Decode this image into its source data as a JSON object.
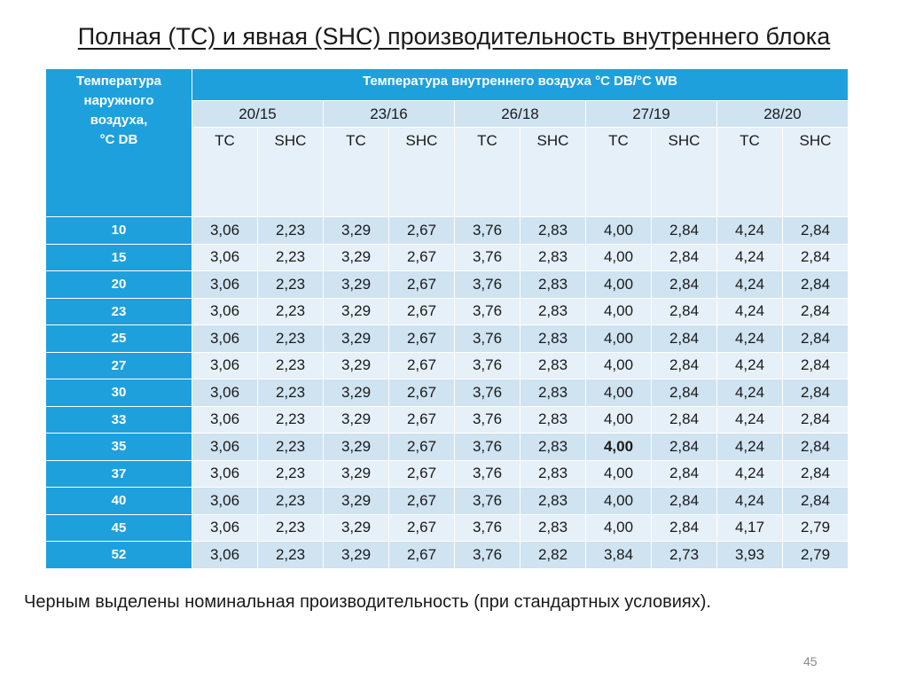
{
  "title": "Полная (TC) и явная (SHC) производительность внутреннего блока",
  "table": {
    "corner_header": [
      "Температура",
      "наружного",
      "воздуха,",
      "°C DB"
    ],
    "main_header": "Температура внутреннего воздуха °C DB/°C WB",
    "indoor_conditions": [
      "20/15",
      "23/16",
      "26/18",
      "27/19",
      "28/20"
    ],
    "sub_headers": [
      "TC",
      "SHC"
    ],
    "rows": [
      {
        "outdoor": "10",
        "values": [
          "3,06",
          "2,23",
          "3,29",
          "2,67",
          "3,76",
          "2,83",
          "4,00",
          "2,84",
          "4,24",
          "2,84"
        ]
      },
      {
        "outdoor": "15",
        "values": [
          "3,06",
          "2,23",
          "3,29",
          "2,67",
          "3,76",
          "2,83",
          "4,00",
          "2,84",
          "4,24",
          "2,84"
        ]
      },
      {
        "outdoor": "20",
        "values": [
          "3,06",
          "2,23",
          "3,29",
          "2,67",
          "3,76",
          "2,83",
          "4,00",
          "2,84",
          "4,24",
          "2,84"
        ]
      },
      {
        "outdoor": "23",
        "values": [
          "3,06",
          "2,23",
          "3,29",
          "2,67",
          "3,76",
          "2,83",
          "4,00",
          "2,84",
          "4,24",
          "2,84"
        ]
      },
      {
        "outdoor": "25",
        "values": [
          "3,06",
          "2,23",
          "3,29",
          "2,67",
          "3,76",
          "2,83",
          "4,00",
          "2,84",
          "4,24",
          "2,84"
        ]
      },
      {
        "outdoor": "27",
        "values": [
          "3,06",
          "2,23",
          "3,29",
          "2,67",
          "3,76",
          "2,83",
          "4,00",
          "2,84",
          "4,24",
          "2,84"
        ]
      },
      {
        "outdoor": "30",
        "values": [
          "3,06",
          "2,23",
          "3,29",
          "2,67",
          "3,76",
          "2,83",
          "4,00",
          "2,84",
          "4,24",
          "2,84"
        ]
      },
      {
        "outdoor": "33",
        "values": [
          "3,06",
          "2,23",
          "3,29",
          "2,67",
          "3,76",
          "2,83",
          "4,00",
          "2,84",
          "4,24",
          "2,84"
        ]
      },
      {
        "outdoor": "35",
        "values": [
          "3,06",
          "2,23",
          "3,29",
          "2,67",
          "3,76",
          "2,83",
          "4,00",
          "2,84",
          "4,24",
          "2,84"
        ]
      },
      {
        "outdoor": "37",
        "values": [
          "3,06",
          "2,23",
          "3,29",
          "2,67",
          "3,76",
          "2,83",
          "4,00",
          "2,84",
          "4,24",
          "2,84"
        ]
      },
      {
        "outdoor": "40",
        "values": [
          "3,06",
          "2,23",
          "3,29",
          "2,67",
          "3,76",
          "2,83",
          "4,00",
          "2,84",
          "4,24",
          "2,84"
        ]
      },
      {
        "outdoor": "45",
        "values": [
          "3,06",
          "2,23",
          "3,29",
          "2,67",
          "3,76",
          "2,83",
          "4,00",
          "2,84",
          "4,17",
          "2,79"
        ]
      },
      {
        "outdoor": "52",
        "values": [
          "3,06",
          "2,23",
          "3,29",
          "2,67",
          "3,76",
          "2,82",
          "3,84",
          "2,73",
          "3,93",
          "2,79"
        ]
      }
    ],
    "highlighted_value": "4,00"
  },
  "note": "Черным выделены номинальная производительность (при стандартных условиях).",
  "page_number": "45",
  "colors": {
    "header_blue": "#1ea0dd",
    "row_light": "#e6f0f8",
    "row_mid": "#cfe3f1"
  }
}
